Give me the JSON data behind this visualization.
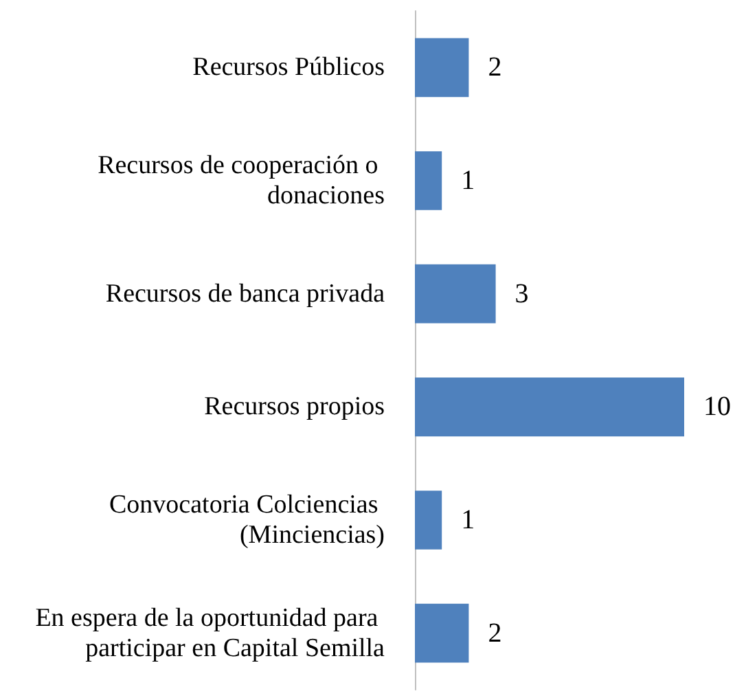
{
  "chart_data": {
    "type": "bar",
    "orientation": "horizontal",
    "categories": [
      "Recursos Públicos",
      "Recursos de cooperación o donaciones",
      "Recursos de banca privada",
      "Recursos propios",
      "Convocatoria Colciencias (Minciencias)",
      "En espera de la oportunidad para participar en Capital Semilla"
    ],
    "values": [
      2,
      1,
      3,
      10,
      1,
      2
    ],
    "color": "#4f81bd",
    "data_labels": true
  }
}
